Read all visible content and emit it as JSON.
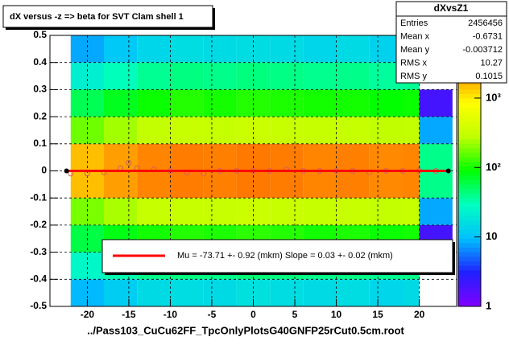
{
  "chart_data": {
    "type": "heatmap",
    "title": "dX versus -z  => beta for SVT Clam shell 1",
    "x_label": "../Pass103_CuCu62FF_TpcOnlyPlotsG40GNFP25rCut0.5cm.root",
    "xlim": [
      -24.5,
      24.5
    ],
    "ylim": [
      -0.5,
      0.5
    ],
    "xticks": [
      -20,
      -15,
      -10,
      -5,
      0,
      5,
      10,
      15,
      20
    ],
    "yticks": [
      -0.5,
      -0.4,
      -0.3,
      -0.2,
      -0.1,
      0,
      0.1,
      0.2,
      0.3,
      0.4,
      0.5
    ],
    "grid": true,
    "xbins": [
      -24,
      -22,
      -18,
      -14,
      -10,
      -6,
      -2,
      2,
      6,
      10,
      14,
      18,
      20,
      24
    ],
    "ybins": [
      -0.5,
      -0.4,
      -0.3,
      -0.2,
      -0.1,
      0,
      0.1,
      0.2,
      0.3,
      0.4,
      0.5
    ],
    "z": [
      [
        0,
        9,
        12,
        15,
        16,
        15,
        17,
        16,
        15,
        16,
        14,
        15,
        0
      ],
      [
        0,
        25,
        32,
        40,
        42,
        40,
        44,
        42,
        40,
        41,
        38,
        40,
        0
      ],
      [
        0,
        60,
        80,
        100,
        110,
        105,
        115,
        110,
        100,
        105,
        95,
        100,
        2
      ],
      [
        0,
        180,
        240,
        300,
        320,
        310,
        330,
        320,
        300,
        310,
        290,
        300,
        8
      ],
      [
        0,
        1500,
        2000,
        2500,
        2700,
        2600,
        2800,
        2700,
        2500,
        2600,
        2400,
        2500,
        40
      ],
      [
        0,
        1500,
        2000,
        2500,
        2700,
        2600,
        2800,
        2700,
        2500,
        2600,
        2400,
        2500,
        40
      ],
      [
        0,
        170,
        230,
        290,
        320,
        300,
        330,
        310,
        300,
        300,
        280,
        290,
        8
      ],
      [
        0,
        55,
        75,
        95,
        110,
        100,
        110,
        105,
        100,
        100,
        90,
        95,
        2
      ],
      [
        0,
        22,
        30,
        38,
        42,
        40,
        43,
        41,
        39,
        40,
        36,
        38,
        0
      ],
      [
        0,
        8,
        11,
        14,
        16,
        15,
        16,
        15,
        14,
        15,
        13,
        14,
        0
      ]
    ],
    "zlim": [
      1,
      8000
    ],
    "zlog": true,
    "zticks": [
      1,
      10,
      {
        "value": 100,
        "label": "10²"
      },
      {
        "value": 1000,
        "label": "10³"
      }
    ],
    "palette": [
      "#8000ff",
      "#2020ff",
      "#00c0ff",
      "#00ffc0",
      "#00ff00",
      "#c0ff00",
      "#ffff00",
      "#ff8000",
      "#ff0000"
    ],
    "profile": {
      "color": "#d06060",
      "x": [
        -22,
        -20,
        -18,
        -16,
        -15,
        -14,
        -12,
        -10,
        -8,
        -6,
        -4,
        -2,
        0,
        2,
        4,
        6,
        8,
        10,
        12,
        14,
        16,
        18,
        20,
        22
      ],
      "y": [
        -0.01,
        -0.01,
        -0.005,
        0.01,
        0.03,
        0.01,
        0.005,
        0,
        -0.005,
        -0.01,
        0,
        0,
        0,
        0,
        0.005,
        0,
        0,
        0,
        0,
        -0.005,
        0,
        0,
        0,
        0
      ]
    },
    "fit": {
      "color": "#ff0000",
      "x": [
        -22.5,
        23.5
      ],
      "y": [
        0,
        0
      ]
    },
    "legend": {
      "text": "Mu =  -73.71 +-  0.92 (mkm) Slope =    0.03 +-  0.02 (mkm)"
    },
    "stats": {
      "title": "dXvsZ1",
      "rows": [
        [
          "Entries",
          2456456
        ],
        [
          "Mean x",
          -0.6731
        ],
        [
          "Mean y",
          -0.003712
        ],
        [
          "RMS x",
          10.27
        ],
        [
          "RMS y",
          0.1015
        ]
      ]
    }
  }
}
